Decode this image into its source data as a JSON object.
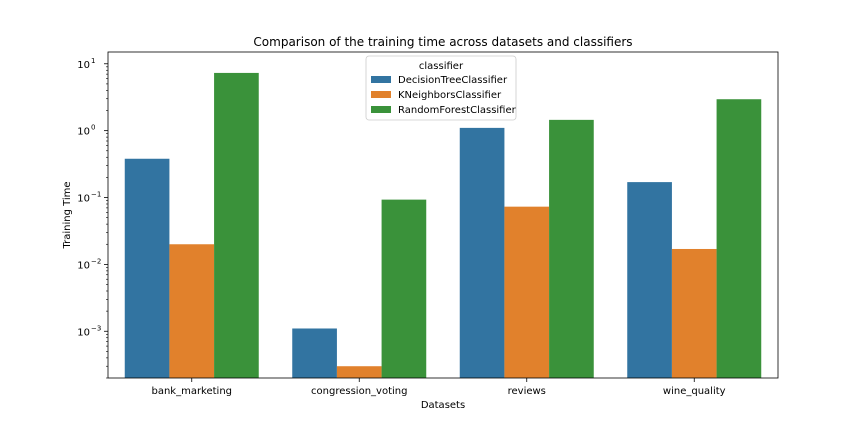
{
  "chart_data": {
    "type": "bar",
    "title": "Comparison of the training time across datasets and classifiers",
    "xlabel": "Datasets",
    "ylabel": "Training Time",
    "yscale": "log",
    "ylim": [
      0.0002,
      15
    ],
    "yticks": [
      {
        "value": 0.001,
        "base": "10",
        "exp": "−3"
      },
      {
        "value": 0.01,
        "base": "10",
        "exp": "−2"
      },
      {
        "value": 0.1,
        "base": "10",
        "exp": "−1"
      },
      {
        "value": 1,
        "base": "10",
        "exp": "0"
      },
      {
        "value": 10,
        "base": "10",
        "exp": "1"
      }
    ],
    "categories": [
      "bank_marketing",
      "congression_voting",
      "reviews",
      "wine_quality"
    ],
    "legend": {
      "title": "classifier",
      "position": "top-center"
    },
    "series": [
      {
        "name": "DecisionTreeClassifier",
        "color": "#3274a1",
        "values": [
          0.38,
          0.0011,
          1.1,
          0.17
        ]
      },
      {
        "name": "KNeighborsClassifier",
        "color": "#e1812c",
        "values": [
          0.02,
          0.0003,
          0.073,
          0.017
        ]
      },
      {
        "name": "RandomForestClassifier",
        "color": "#3a923a",
        "values": [
          7.3,
          0.093,
          1.45,
          2.95
        ]
      }
    ],
    "grid": false
  }
}
